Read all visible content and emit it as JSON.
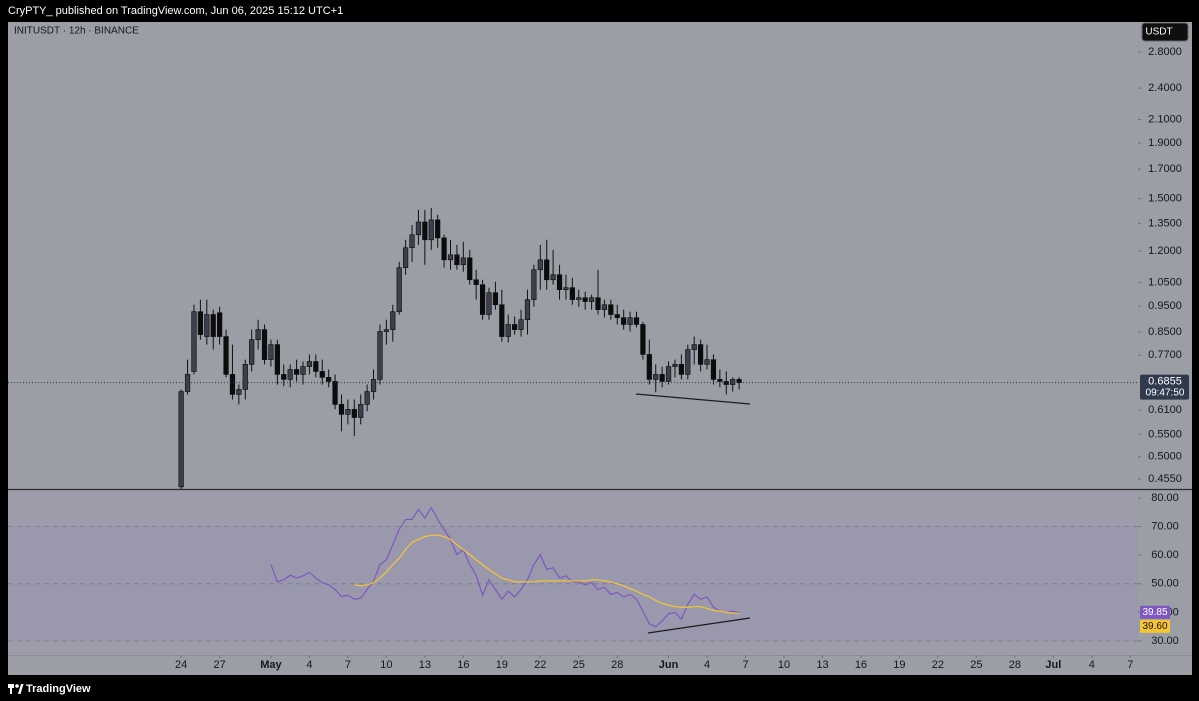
{
  "header": "CryPTY_ published on TradingView.com, Jun 06, 2025 15:12 UTC+1",
  "footer": "TradingView",
  "chart_data": [
    {
      "type": "candlestick",
      "title": "INITUSDT · 12h · BINANCE",
      "unit": "USDT",
      "log_scale": true,
      "up_color": "#3b404c",
      "down_color": "#0c0c0e",
      "x": [
        24,
        24.5,
        25,
        25.5,
        26,
        26.5,
        27,
        27.5,
        28,
        28.5,
        29,
        29.5,
        30,
        30.5,
        31,
        31.5,
        32,
        32.5,
        33,
        33.5,
        34,
        34.5,
        35,
        35.5,
        36,
        36.5,
        37,
        37.5,
        38,
        38.5,
        39,
        39.5,
        40,
        40.5,
        41,
        41.5,
        42,
        42.5,
        43,
        43.5,
        44,
        44.5,
        45,
        45.5,
        46,
        46.5,
        47,
        47.5,
        48,
        48.5,
        49,
        49.5,
        50,
        50.5,
        51,
        51.5,
        52,
        52.5,
        53,
        53.5,
        54,
        54.5,
        55,
        55.5,
        56,
        56.5,
        57,
        57.5,
        58,
        58.5,
        59,
        59.5,
        60,
        60.5,
        61,
        61.5,
        62,
        62.5,
        63,
        63.5,
        64,
        64.5,
        65,
        65.5,
        66,
        66.5,
        67,
        67.5
      ],
      "xlim": [
        10.5,
        98.6
      ],
      "xticks": [
        24,
        27,
        {
          "value": 31,
          "label": "May"
        },
        {
          "value": 34,
          "label": "4"
        },
        {
          "value": 37,
          "label": "7"
        },
        {
          "value": 40,
          "label": "10"
        },
        {
          "value": 43,
          "label": "13"
        },
        {
          "value": 46,
          "label": "16"
        },
        {
          "value": 49,
          "label": "19"
        },
        {
          "value": 52,
          "label": "22"
        },
        {
          "value": 55,
          "label": "25"
        },
        {
          "value": 58,
          "label": "28"
        },
        {
          "value": 62,
          "label": "Jun"
        },
        {
          "value": 65,
          "label": "4"
        },
        {
          "value": 68,
          "label": "7"
        },
        {
          "value": 71,
          "label": "10"
        },
        {
          "value": 74,
          "label": "13"
        },
        {
          "value": 77,
          "label": "16"
        },
        {
          "value": 80,
          "label": "19"
        },
        {
          "value": 83,
          "label": "22"
        },
        {
          "value": 86,
          "label": "25"
        },
        {
          "value": 89,
          "label": "28"
        },
        {
          "value": 92,
          "label": "Jul"
        },
        {
          "value": 95,
          "label": "4"
        },
        {
          "value": 98,
          "label": "7"
        }
      ],
      "open": [
        0.44,
        0.66,
        0.719,
        0.927,
        0.834,
        0.916,
        0.923,
        0.834,
        0.71,
        0.652,
        0.666,
        0.741,
        0.823,
        0.859,
        0.756,
        0.806,
        0.71,
        0.695,
        0.725,
        0.71,
        0.734,
        0.75,
        0.719,
        0.701,
        0.689,
        0.625,
        0.599,
        0.612,
        0.591,
        0.625,
        0.66,
        0.695,
        0.852,
        0.859,
        0.927,
        1.118,
        1.217,
        1.286,
        1.358,
        1.259,
        1.37,
        1.269,
        1.156,
        1.181,
        1.132,
        1.166,
        1.062,
        1.04,
        0.916,
        1.005,
        0.955,
        0.834,
        0.878,
        0.859,
        0.896,
        0.976,
        1.108,
        1.156,
        1.062,
        1.085,
        1.018,
        1.027,
        0.976,
        0.984,
        0.968,
        0.984,
        0.935,
        0.955,
        0.916,
        0.904,
        0.878,
        0.904,
        0.878,
        0.773,
        0.695,
        0.71,
        0.689,
        0.734,
        0.741,
        0.71,
        0.789,
        0.806,
        0.741,
        0.756,
        0.695,
        0.689,
        0.68,
        0.695
      ],
      "high": [
        0.666,
        0.756,
        0.955,
        0.976,
        0.976,
        0.935,
        0.947,
        0.859,
        0.806,
        0.68,
        0.756,
        0.859,
        0.896,
        0.878,
        0.823,
        0.823,
        0.741,
        0.741,
        0.756,
        0.75,
        0.773,
        0.773,
        0.756,
        0.725,
        0.71,
        0.652,
        0.638,
        0.638,
        0.652,
        0.68,
        0.725,
        0.878,
        0.896,
        0.955,
        1.146,
        1.259,
        1.341,
        1.43,
        1.43,
        1.442,
        1.4,
        1.286,
        1.259,
        1.232,
        1.248,
        1.206,
        1.108,
        1.062,
        1.027,
        1.053,
        1.018,
        0.916,
        0.908,
        0.935,
        1.018,
        1.132,
        1.232,
        1.259,
        1.206,
        1.132,
        1.085,
        1.071,
        1.018,
        1.009,
        0.997,
        1.108,
        0.976,
        0.976,
        0.955,
        0.935,
        0.927,
        0.927,
        0.888,
        0.823,
        0.741,
        0.734,
        0.75,
        0.756,
        0.773,
        0.806,
        0.834,
        0.823,
        0.806,
        0.773,
        0.725,
        0.719,
        0.701,
        0.701
      ],
      "low": [
        0.436,
        0.652,
        0.71,
        0.823,
        0.806,
        0.789,
        0.806,
        0.701,
        0.638,
        0.625,
        0.638,
        0.719,
        0.789,
        0.741,
        0.734,
        0.68,
        0.675,
        0.672,
        0.689,
        0.68,
        0.71,
        0.701,
        0.68,
        0.672,
        0.612,
        0.557,
        0.574,
        0.546,
        0.574,
        0.607,
        0.638,
        0.68,
        0.806,
        0.816,
        0.916,
        1.085,
        1.146,
        1.232,
        1.132,
        1.206,
        1.217,
        1.118,
        1.108,
        1.108,
        1.099,
        1.04,
        0.976,
        0.896,
        0.896,
        0.935,
        0.816,
        0.813,
        0.841,
        0.834,
        0.841,
        0.947,
        1.018,
        1.018,
        1.04,
        0.976,
        0.976,
        0.955,
        0.947,
        0.935,
        0.935,
        0.916,
        0.904,
        0.896,
        0.878,
        0.859,
        0.852,
        0.867,
        0.756,
        0.68,
        0.658,
        0.672,
        0.68,
        0.701,
        0.695,
        0.695,
        0.741,
        0.719,
        0.725,
        0.68,
        0.672,
        0.652,
        0.66,
        0.666
      ],
      "close": [
        0.66,
        0.71,
        0.927,
        0.841,
        0.916,
        0.834,
        0.834,
        0.71,
        0.652,
        0.666,
        0.741,
        0.823,
        0.859,
        0.756,
        0.806,
        0.71,
        0.695,
        0.725,
        0.71,
        0.734,
        0.75,
        0.719,
        0.701,
        0.689,
        0.625,
        0.599,
        0.612,
        0.591,
        0.625,
        0.66,
        0.695,
        0.852,
        0.859,
        0.927,
        1.118,
        1.217,
        1.286,
        1.358,
        1.259,
        1.37,
        1.269,
        1.156,
        1.181,
        1.132,
        1.166,
        1.062,
        1.04,
        0.916,
        1.005,
        0.955,
        0.834,
        0.878,
        0.859,
        0.896,
        0.976,
        1.108,
        1.156,
        1.062,
        1.085,
        1.018,
        1.027,
        0.976,
        0.984,
        0.968,
        0.984,
        0.935,
        0.955,
        0.916,
        0.904,
        0.878,
        0.904,
        0.878,
        0.773,
        0.695,
        0.71,
        0.689,
        0.734,
        0.741,
        0.71,
        0.789,
        0.806,
        0.741,
        0.756,
        0.695,
        0.689,
        0.68,
        0.695,
        0.6855
      ],
      "ylim": [
        0.436,
        3.18
      ],
      "yticks": [
        {
          "value": 2.8,
          "label": "2.8000"
        },
        {
          "value": 2.4,
          "label": "2.4000"
        },
        {
          "value": 2.1,
          "label": "2.1000"
        },
        {
          "value": 1.9,
          "label": "1.9000"
        },
        {
          "value": 1.7,
          "label": "1.7000"
        },
        {
          "value": 1.5,
          "label": "1.5000"
        },
        {
          "value": 1.35,
          "label": "1.3500"
        },
        {
          "value": 1.2,
          "label": "1.2000"
        },
        {
          "value": 1.05,
          "label": "1.0500"
        },
        {
          "value": 0.95,
          "label": "0.9500"
        },
        {
          "value": 0.85,
          "label": "0.8500"
        },
        {
          "value": 0.77,
          "label": "0.7700"
        },
        {
          "value": 0.61,
          "label": "0.6100"
        },
        {
          "value": 0.55,
          "label": "0.5500"
        },
        {
          "value": 0.5,
          "label": "0.5000"
        },
        {
          "value": 0.455,
          "label": "0.4550"
        }
      ],
      "last_price": 0.6855,
      "countdown": "09:47:50"
    },
    {
      "type": "line",
      "ylim": [
        25.1,
        82.8
      ],
      "yticks": [
        {
          "value": 80,
          "label": "80.00"
        },
        {
          "value": 70,
          "label": "70.00"
        },
        {
          "value": 60,
          "label": "60.00"
        },
        {
          "value": 50,
          "label": "50.00"
        },
        {
          "value": 40,
          "label": "40.00"
        },
        {
          "value": 30,
          "label": "30.00"
        }
      ],
      "levels": [
        70,
        50,
        30
      ],
      "band_color": "#9a98ad",
      "series": [
        {
          "color": "#7e57c2",
          "last_label": "39.85",
          "values": [
            null,
            null,
            null,
            null,
            null,
            null,
            null,
            null,
            null,
            null,
            null,
            null,
            null,
            null,
            56.7,
            50.7,
            51.4,
            53,
            52,
            52.8,
            54,
            52,
            50.4,
            49.6,
            48,
            45.5,
            46,
            44.6,
            45,
            48,
            51,
            56.7,
            58.4,
            63.7,
            69,
            72.5,
            72.5,
            76,
            73,
            76.7,
            72.5,
            69,
            65.5,
            60.2,
            62,
            56.7,
            53,
            46,
            51.4,
            48,
            44.6,
            47.4,
            45.4,
            48,
            51.4,
            56.7,
            60.2,
            55,
            55.6,
            52,
            52.8,
            50.7,
            50.7,
            49.6,
            50.4,
            48,
            48.8,
            46.3,
            47,
            45.4,
            46.3,
            44.6,
            40.4,
            36,
            35,
            37,
            39.5,
            40,
            37.6,
            42.8,
            46.3,
            44.6,
            45.4,
            41.8,
            40.4,
            40,
            40.4,
            39.85
          ]
        },
        {
          "color": "#f7c531",
          "last_label": "39.60",
          "values": [
            null,
            null,
            null,
            null,
            null,
            null,
            null,
            null,
            null,
            null,
            null,
            null,
            null,
            null,
            null,
            null,
            null,
            null,
            null,
            null,
            null,
            null,
            null,
            null,
            null,
            null,
            null,
            49.6,
            49.3,
            49.6,
            50.4,
            52,
            54.2,
            56.7,
            59,
            62,
            64.5,
            65.5,
            66.5,
            67,
            67,
            66.5,
            65.5,
            63.7,
            62,
            60.2,
            58.4,
            56.7,
            55,
            53.5,
            52,
            51.4,
            50.7,
            50.7,
            50.7,
            50.7,
            51,
            51,
            51,
            51,
            51,
            51,
            51,
            51,
            51.4,
            51.4,
            51,
            50.7,
            50,
            49.3,
            48.3,
            47.4,
            46.3,
            45.4,
            44.2,
            43.2,
            42.5,
            42,
            41.8,
            41.8,
            42,
            42,
            41.4,
            40.7,
            40.4,
            40,
            39.8,
            39.6
          ]
        }
      ]
    }
  ]
}
